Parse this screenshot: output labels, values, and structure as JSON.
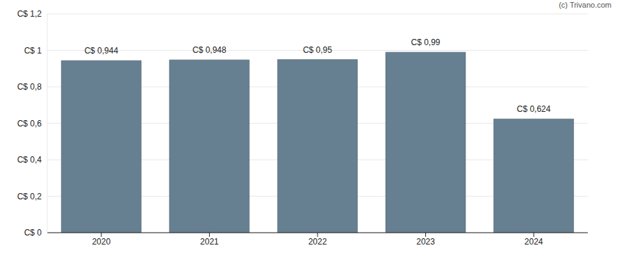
{
  "chart_data": {
    "type": "bar",
    "annotation": "(c) Trivano.com",
    "categories": [
      "2020",
      "2021",
      "2022",
      "2023",
      "2024"
    ],
    "values": [
      0.944,
      0.948,
      0.95,
      0.99,
      0.624
    ],
    "value_labels": [
      "C$ 0,944",
      "C$ 0,948",
      "C$ 0,95",
      "C$ 0,99",
      "C$ 0,624"
    ],
    "data_labels": true,
    "color": "#667f91",
    "ylim": [
      0,
      1.2
    ],
    "yticks": [
      {
        "value": 0,
        "label": "C$ 0"
      },
      {
        "value": 0.2,
        "label": "C$ 0,2"
      },
      {
        "value": 0.4,
        "label": "C$ 0,4"
      },
      {
        "value": 0.6,
        "label": "C$ 0,6"
      },
      {
        "value": 0.8,
        "label": "C$ 0,8"
      },
      {
        "value": 1,
        "label": "C$ 1"
      },
      {
        "value": 1.2,
        "label": "C$ 1,2"
      }
    ],
    "grid": true
  }
}
